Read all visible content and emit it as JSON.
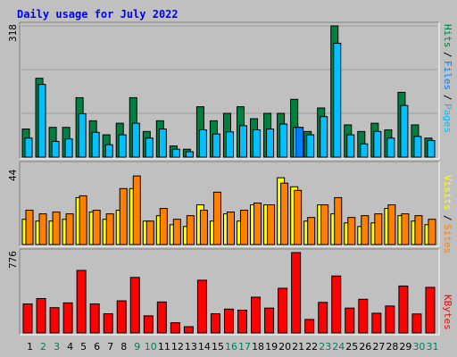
{
  "chart_data": [
    {
      "type": "bar",
      "title": "Daily usage for July 2022",
      "y_max_label": "318",
      "ylim": [
        0,
        318
      ],
      "categories": [
        "1",
        "2",
        "3",
        "4",
        "5",
        "6",
        "7",
        "8",
        "9",
        "10",
        "11",
        "12",
        "13",
        "14",
        "15",
        "16",
        "17",
        "18",
        "19",
        "20",
        "21",
        "22",
        "23",
        "24",
        "25",
        "26",
        "27",
        "28",
        "29",
        "30",
        "31"
      ],
      "weekend_days": [
        "2",
        "3",
        "9",
        "10",
        "16",
        "17",
        "23",
        "24",
        "30",
        "31"
      ],
      "legend": [
        "Pages",
        "Files",
        "Hits"
      ],
      "series": [
        {
          "name": "Hits",
          "color": "#008040",
          "values": [
            68,
            191,
            72,
            72,
            144,
            88,
            54,
            82,
            144,
            62,
            88,
            27,
            19,
            122,
            88,
            106,
            122,
            93,
            106,
            106,
            140,
            62,
            119,
            318,
            78,
            62,
            82,
            66,
            157,
            78,
            46
          ]
        },
        {
          "name": "Files",
          "color": "#00c0ff",
          "values": [
            46,
            176,
            38,
            44,
            105,
            60,
            30,
            54,
            82,
            46,
            68,
            19,
            13,
            66,
            56,
            61,
            76,
            66,
            68,
            80,
            72,
            54,
            98,
            276,
            54,
            32,
            62,
            46,
            125,
            50,
            40
          ]
        },
        {
          "name": "Pages",
          "color": "#0080ff",
          "values": [
            0,
            0,
            0,
            0,
            0,
            0,
            0,
            0,
            0,
            0,
            0,
            0,
            0,
            0,
            0,
            0,
            0,
            0,
            0,
            0,
            72,
            0,
            0,
            0,
            0,
            0,
            0,
            0,
            0,
            0,
            0
          ]
        }
      ]
    },
    {
      "type": "bar",
      "y_max_label": "44",
      "ylim": [
        0,
        44
      ],
      "categories": [
        "1",
        "2",
        "3",
        "4",
        "5",
        "6",
        "7",
        "8",
        "9",
        "10",
        "11",
        "12",
        "13",
        "14",
        "15",
        "16",
        "17",
        "18",
        "19",
        "20",
        "21",
        "22",
        "23",
        "24",
        "25",
        "26",
        "27",
        "28",
        "29",
        "30",
        "31"
      ],
      "legend": [
        "Sites",
        "Visits"
      ],
      "series": [
        {
          "name": "Visits",
          "color": "#ffff00",
          "values": [
            14,
            13,
            13,
            14,
            26,
            18,
            14,
            19,
            31,
            13,
            16,
            11,
            10,
            22,
            13,
            17,
            13,
            22,
            22,
            37,
            32,
            13,
            22,
            17,
            12,
            10,
            12,
            20,
            16,
            13,
            11
          ]
        },
        {
          "name": "Sites",
          "color": "#ff8000",
          "values": [
            19,
            17,
            18,
            17,
            27,
            19,
            17,
            31,
            38,
            13,
            20,
            14,
            16,
            19,
            29,
            18,
            19,
            23,
            22,
            34,
            30,
            15,
            22,
            26,
            15,
            16,
            17,
            22,
            17,
            16,
            14
          ]
        }
      ]
    },
    {
      "type": "bar",
      "y_max_label": "776",
      "ylim": [
        0,
        776
      ],
      "categories": [
        "1",
        "2",
        "3",
        "4",
        "5",
        "6",
        "7",
        "8",
        "9",
        "10",
        "11",
        "12",
        "13",
        "14",
        "15",
        "16",
        "17",
        "18",
        "19",
        "20",
        "21",
        "22",
        "23",
        "24",
        "25",
        "26",
        "27",
        "28",
        "29",
        "30",
        "31"
      ],
      "legend": [
        "KBytes"
      ],
      "series": [
        {
          "name": "KBytes",
          "color": "#ff0000",
          "values": [
            280,
            332,
            244,
            290,
            604,
            280,
            185,
            310,
            536,
            165,
            299,
            98,
            60,
            509,
            185,
            230,
            220,
            345,
            240,
            431,
            776,
            130,
            295,
            550,
            240,
            325,
            190,
            260,
            453,
            183,
            440
          ]
        }
      ]
    }
  ],
  "colors": {
    "panel_bg": "#c0c0c0",
    "border_light": "#ffffff",
    "border_dark": "#808080",
    "title_color": "#0000ff",
    "axis_num_color": "#000000",
    "weekend_color": "#00805c",
    "grid": "#9c9c9c"
  }
}
